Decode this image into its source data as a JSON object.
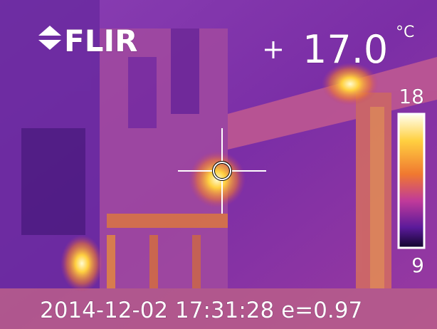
{
  "overlay": {
    "brand": "FLIR",
    "spot_temperature": "17.0",
    "unit": "°C",
    "scale_max": "18",
    "scale_min": "9",
    "footer": "2014-12-02 17:31:28 e=0.97"
  }
}
